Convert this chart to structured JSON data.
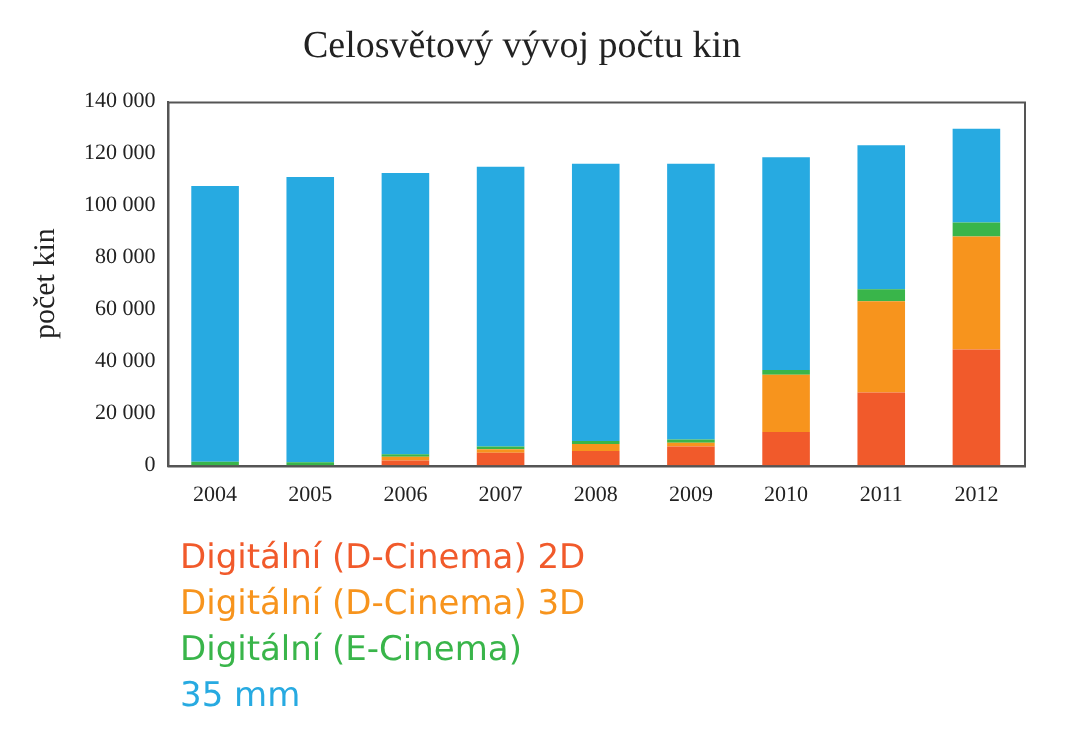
{
  "chart_data": {
    "type": "bar",
    "title": "Celosvětový vývoj počtu kin",
    "ylabel": "počet kin",
    "categories": [
      "2004",
      "2005",
      "2006",
      "2007",
      "2008",
      "2009",
      "2010",
      "2011",
      "2012"
    ],
    "stacked": true,
    "legend": "bottom",
    "grid": false,
    "ylim": [
      0,
      140000
    ],
    "yticks": [
      {
        "value": 0,
        "label": "0"
      },
      {
        "value": 20000,
        "label": "20 000"
      },
      {
        "value": 40000,
        "label": "40 000"
      },
      {
        "value": 60000,
        "label": "60 000"
      },
      {
        "value": 80000,
        "label": "80 000"
      },
      {
        "value": 100000,
        "label": "100 000"
      },
      {
        "value": 120000,
        "label": "120 000"
      },
      {
        "value": 140000,
        "label": "140 000"
      }
    ],
    "series": [
      {
        "name": "Digitální (D-Cinema) 2D",
        "color": "#f15a2b",
        "values": [
          0,
          0,
          2000,
          4900,
          5600,
          7300,
          12900,
          28100,
          44700
        ]
      },
      {
        "name": "Digitální (D-Cinema) 3D",
        "color": "#f7941d",
        "values": [
          0,
          0,
          1400,
          1400,
          2700,
          1500,
          22000,
          35100,
          43400
        ]
      },
      {
        "name": "Digitální (E-Cinema)",
        "color": "#39b54a",
        "values": [
          1500,
          1300,
          1000,
          1000,
          1200,
          1200,
          1900,
          4600,
          5400
        ]
      },
      {
        "name": "35 mm",
        "color": "#27aae1",
        "values": [
          106000,
          109700,
          108100,
          107600,
          106600,
          106100,
          81800,
          55400,
          36100
        ]
      }
    ]
  }
}
